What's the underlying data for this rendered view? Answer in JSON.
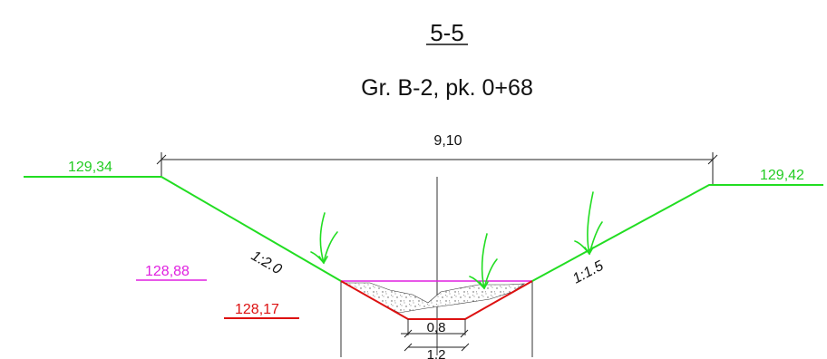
{
  "header": {
    "section_label": "5-5",
    "subtitle": "Gr. B-2, pk. 0+68"
  },
  "dimensions": {
    "top_width": "9,10",
    "channel_width": "0,8",
    "bottom_width": "1,2"
  },
  "elevations": {
    "left_bank": "129,34",
    "right_bank": "129,42",
    "water_level": "128,88",
    "bottom": "128,17"
  },
  "slopes": {
    "left": "1:2.0",
    "right": "1:1.5"
  },
  "colors": {
    "ground_line": "#22dd22",
    "water_level": "#e020e0",
    "bottom_line": "#dd1111",
    "dimension_line": "#222222",
    "grass_icon": "#22dd22"
  }
}
